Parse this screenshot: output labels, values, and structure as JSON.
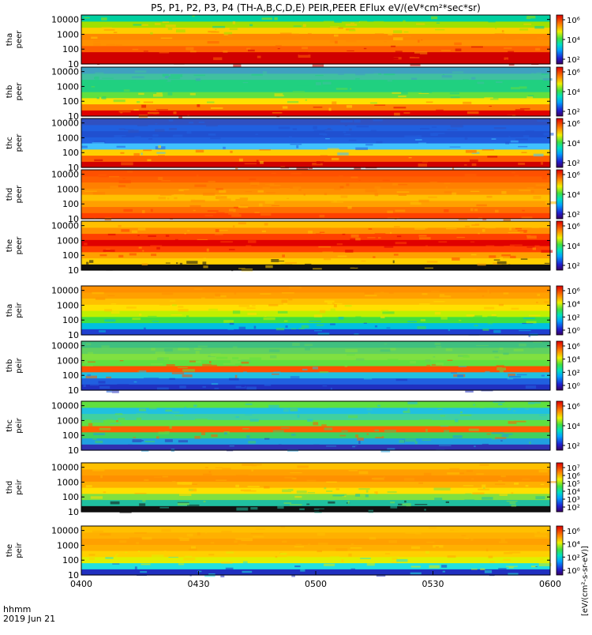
{
  "chart_data": {
    "type": "heatmap",
    "title": "P5, P1, P2, P3, P4 (TH-A,B,C,D,E) PEIR,PEER EFlux eV/(eV*cm²*sec*sr)",
    "date_label": "2019 Jun 21",
    "xaxis": {
      "label": "hhmm",
      "range": [
        "0400",
        "0600"
      ],
      "ticks": [
        "0400",
        "0430",
        "0500",
        "0530",
        "0600"
      ]
    },
    "yaxis": {
      "scale": "log",
      "range": [
        10,
        20000
      ],
      "ticks": [
        "10",
        "100",
        "1000",
        "10000"
      ]
    },
    "colorbar": {
      "scale": "log",
      "colormap": "rainbow (violet-blue-cyan-green-yellow-red)",
      "units_label": "[eV/(cm²-s-sr-eV)]"
    },
    "panels": [
      {
        "probe": "tha",
        "species": "peer",
        "cbar_ticks": [
          "10²",
          "10⁴",
          "10⁶"
        ]
      },
      {
        "probe": "thb",
        "species": "peer",
        "cbar_ticks": [
          "10²",
          "10⁴",
          "10⁶"
        ]
      },
      {
        "probe": "thc",
        "species": "peer",
        "cbar_ticks": [
          "10²",
          "10⁴",
          "10⁶"
        ]
      },
      {
        "probe": "thd",
        "species": "peer",
        "cbar_ticks": [
          "10²",
          "10⁴",
          "10⁶"
        ]
      },
      {
        "probe": "the",
        "species": "peer",
        "cbar_ticks": [
          "10²",
          "10⁴",
          "10⁶"
        ]
      },
      {
        "probe": "tha",
        "species": "peir",
        "cbar_ticks": [
          "10⁰",
          "10²",
          "10⁴",
          "10⁶"
        ]
      },
      {
        "probe": "thb",
        "species": "peir",
        "cbar_ticks": [
          "10⁰",
          "10²",
          "10⁴",
          "10⁶"
        ]
      },
      {
        "probe": "thc",
        "species": "peir",
        "cbar_ticks": [
          "10²",
          "10⁴",
          "10⁶"
        ]
      },
      {
        "probe": "thd",
        "species": "peir",
        "cbar_ticks": [
          "10²",
          "10³",
          "10⁴",
          "10⁵",
          "10⁶",
          "10⁷"
        ]
      },
      {
        "probe": "the",
        "species": "peir",
        "cbar_ticks": [
          "10⁰",
          "10²",
          "10⁴",
          "10⁶"
        ]
      }
    ]
  }
}
